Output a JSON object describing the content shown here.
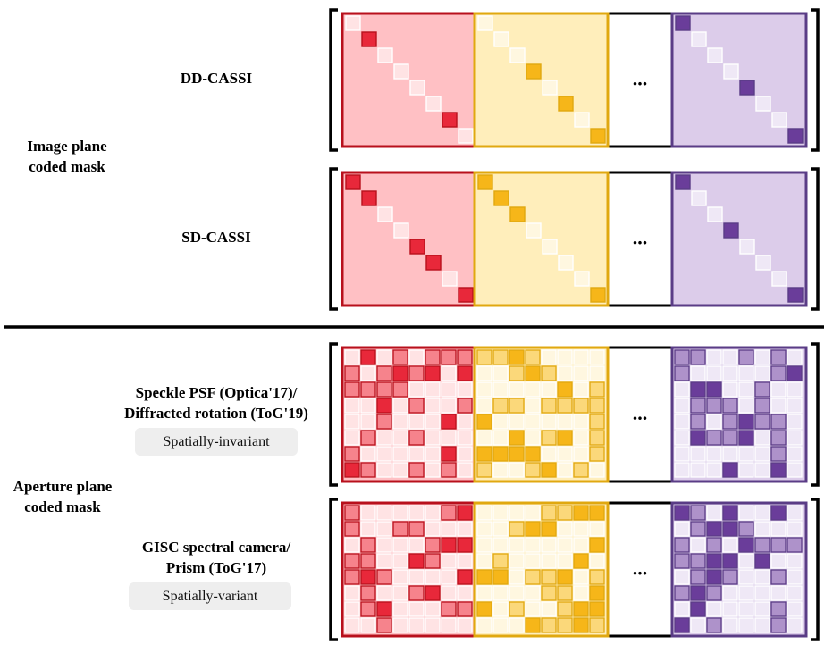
{
  "group_labels": {
    "image_plane": [
      "Image plane",
      "coded mask"
    ],
    "aperture_plane": [
      "Aperture plane",
      "coded mask"
    ]
  },
  "rows": [
    {
      "id": "dd-cassi",
      "title_lines": [
        "DD-CASSI"
      ],
      "badge": ""
    },
    {
      "id": "sd-cassi",
      "title_lines": [
        "SD-CASSI"
      ],
      "badge": ""
    },
    {
      "id": "speckle",
      "title_lines": [
        "Speckle PSF (Optica'17)/",
        "Diffracted rotation (ToG'19)"
      ],
      "badge": "Spatially-invariant"
    },
    {
      "id": "gisc",
      "title_lines": [
        "GISC spectral camera/",
        "Prism (ToG'17)"
      ],
      "badge": "Spatially-variant"
    }
  ],
  "ellipsis": "...",
  "colors": {
    "red": "#e8283a",
    "yellow": "#f6b619",
    "purple": "#6a3d9a",
    "red_bg": "#ffc0c4",
    "yellow_bg": "#ffeebb",
    "purple_bg": "#dcccea",
    "red_border": "#b8101c",
    "yellow_border": "#e0a810",
    "purple_border": "#5a3c86",
    "divider": "#000000"
  }
}
